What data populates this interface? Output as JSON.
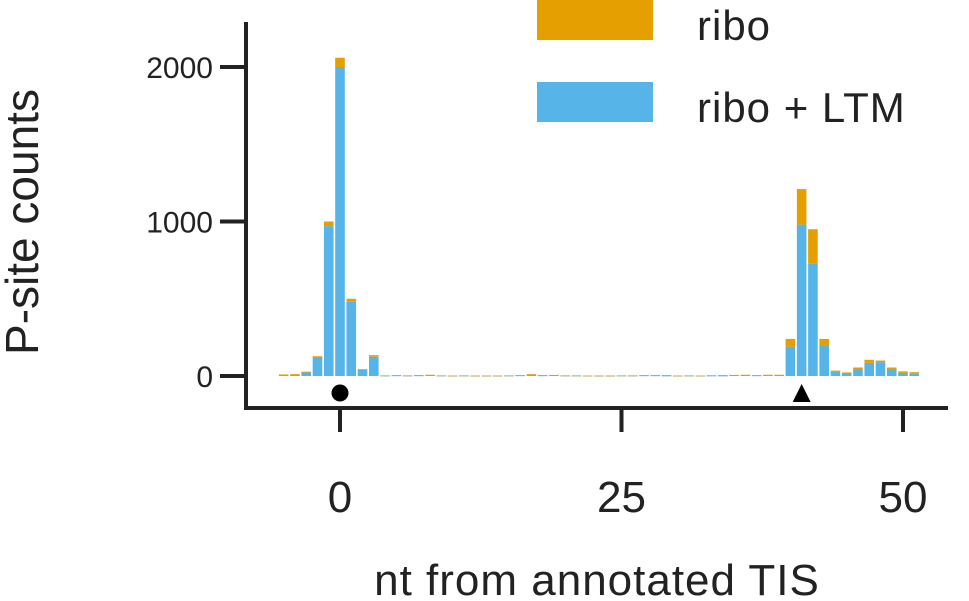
{
  "chart_data": {
    "type": "bar",
    "stacked": true,
    "xlabel": "nt from annotated TIS",
    "ylabel": "P-site counts",
    "xlim": [
      -7,
      53
    ],
    "ylim": [
      -200,
      2300
    ],
    "xticks": [
      0,
      25,
      50
    ],
    "yticks": [
      0,
      1000,
      2000
    ],
    "legend": {
      "placement": "top-right",
      "entries": [
        {
          "label": "ribo",
          "color": "#E69F00"
        },
        {
          "label": "ribo + LTM",
          "color": "#56B4E9"
        }
      ]
    },
    "x": [
      -5,
      -4,
      -3,
      -2,
      -1,
      0,
      1,
      2,
      3,
      4,
      5,
      6,
      7,
      8,
      9,
      10,
      11,
      12,
      13,
      14,
      15,
      16,
      17,
      18,
      19,
      20,
      21,
      22,
      23,
      24,
      25,
      26,
      27,
      28,
      29,
      30,
      31,
      32,
      33,
      34,
      35,
      36,
      37,
      38,
      39,
      40,
      41,
      42,
      43,
      44,
      45,
      46,
      47,
      48,
      49,
      50,
      51
    ],
    "series": [
      {
        "name": "ribo + LTM",
        "color": "#56B4E9",
        "values": [
          8,
          10,
          25,
          120,
          970,
          2000,
          480,
          40,
          125,
          3,
          4,
          3,
          4,
          6,
          3,
          2,
          3,
          2,
          2,
          2,
          3,
          4,
          10,
          4,
          5,
          3,
          3,
          2,
          2,
          2,
          3,
          3,
          4,
          4,
          3,
          2,
          3,
          2,
          3,
          3,
          5,
          5,
          4,
          6,
          5,
          190,
          980,
          730,
          200,
          30,
          20,
          45,
          85,
          90,
          45,
          20,
          15
        ]
      },
      {
        "name": "ribo",
        "color": "#E69F00",
        "values": [
          2,
          2,
          3,
          8,
          30,
          60,
          20,
          5,
          10,
          1,
          2,
          1,
          2,
          2,
          1,
          1,
          1,
          1,
          1,
          1,
          1,
          2,
          2,
          2,
          2,
          1,
          1,
          1,
          1,
          1,
          1,
          1,
          2,
          2,
          3,
          1,
          1,
          1,
          2,
          3,
          2,
          3,
          2,
          2,
          3,
          50,
          230,
          220,
          40,
          5,
          3,
          10,
          20,
          10,
          10,
          10,
          10
        ]
      }
    ],
    "markers": [
      {
        "x": 0,
        "shape": "circle"
      },
      {
        "x": 41,
        "shape": "triangle"
      }
    ]
  }
}
